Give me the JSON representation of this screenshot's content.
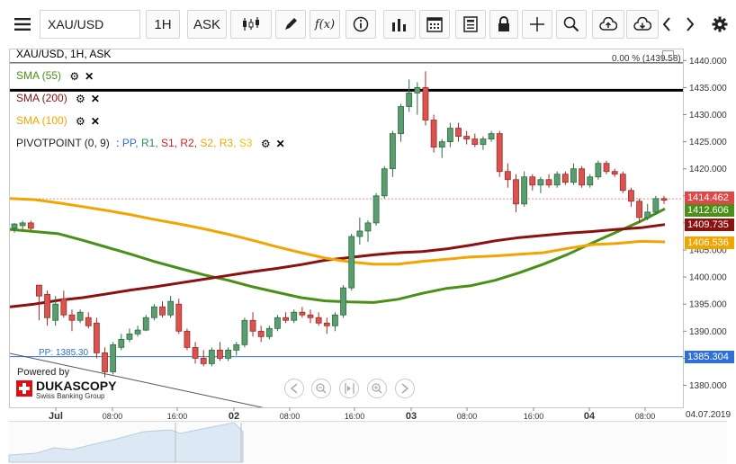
{
  "toolbar": {
    "symbol": "XAU/USD",
    "timeframe": "1H",
    "price_side": "ASK",
    "function_label": "f(x)"
  },
  "chart_header": {
    "title": "XAU/USD, 1H, ASK",
    "pct_readout": "0.00 % (1439.58)"
  },
  "legend": [
    {
      "label": "SMA (55)",
      "color": "#4a8f16"
    },
    {
      "label": "SMA (200)",
      "color": "#8b1010"
    },
    {
      "label": "SMA (100)",
      "color": "#f2a500"
    }
  ],
  "pivot": {
    "label": "PIVOTPOINT (0, 9)",
    "sep": ":",
    "items": [
      {
        "label": "PP,",
        "color": "#2f6fd6"
      },
      {
        "label": "R1,",
        "color": "#2e8b57"
      },
      {
        "label": "S1,",
        "color": "#cc2222"
      },
      {
        "label": "R2,",
        "color": "#cc2222"
      },
      {
        "label": "S2,",
        "color": "#f2a500"
      },
      {
        "label": "R3,",
        "color": "#f2a500"
      },
      {
        "label": "S3",
        "color": "#e8c800"
      }
    ],
    "pp_label": "PP: 1385.30"
  },
  "brand": {
    "powered": "Powered by",
    "name": "DUKASCOPY",
    "sub": "Swiss Banking Group"
  },
  "price_tags": {
    "last": "1414.462",
    "sma55": "1412.606",
    "sma200": "1409.735",
    "sma100": "1406.536",
    "pp": "1385.304"
  },
  "footer_date": "04.07.2019",
  "chart_data": {
    "type": "candlestick",
    "title": "XAU/USD, 1H, ASK",
    "ylim": [
      1377,
      1442
    ],
    "y_ticks": [
      1380,
      1385,
      1390,
      1395,
      1400,
      1405,
      1410,
      1415,
      1420,
      1425,
      1430,
      1435,
      1440
    ],
    "x_ticks": [
      "Jul",
      "08:00",
      "16:00",
      "02",
      "08:00",
      "16:00",
      "03",
      "08:00",
      "16:00",
      "04",
      "08:00"
    ],
    "horizontal_lines": [
      {
        "name": "line",
        "value": 1439.58,
        "color": "#333333"
      },
      {
        "name": "line",
        "value": 1434.5,
        "color": "#000000"
      },
      {
        "name": "PP",
        "value": 1385.304,
        "color": "#2f6fd6"
      }
    ],
    "candles": [
      {
        "o": 1409.0,
        "h": 1410.0,
        "l": 1408.2,
        "c": 1409.8
      },
      {
        "o": 1409.5,
        "h": 1410.4,
        "l": 1408.8,
        "c": 1410.0
      },
      {
        "o": 1410.0,
        "h": 1410.4,
        "l": 1408.6,
        "c": 1409.0
      },
      {
        "o": 1398.5,
        "h": 1398.5,
        "l": 1392.0,
        "c": 1396.5
      },
      {
        "o": 1396.8,
        "h": 1397.5,
        "l": 1391.0,
        "c": 1392.5
      },
      {
        "o": 1392.0,
        "h": 1396.5,
        "l": 1391.0,
        "c": 1395.0
      },
      {
        "o": 1396.0,
        "h": 1397.5,
        "l": 1392.5,
        "c": 1393.0
      },
      {
        "o": 1393.0,
        "h": 1394.0,
        "l": 1390.0,
        "c": 1392.0
      },
      {
        "o": 1392.0,
        "h": 1394.0,
        "l": 1391.5,
        "c": 1393.5
      },
      {
        "o": 1392.5,
        "h": 1393.5,
        "l": 1390.5,
        "c": 1391.0
      },
      {
        "o": 1391.5,
        "h": 1392.5,
        "l": 1385.0,
        "c": 1386.0
      },
      {
        "o": 1386.0,
        "h": 1387.0,
        "l": 1381.5,
        "c": 1382.5
      },
      {
        "o": 1382.5,
        "h": 1388.0,
        "l": 1382.0,
        "c": 1387.5
      },
      {
        "o": 1387.0,
        "h": 1389.5,
        "l": 1386.5,
        "c": 1388.5
      },
      {
        "o": 1388.5,
        "h": 1390.5,
        "l": 1388.0,
        "c": 1389.5
      },
      {
        "o": 1389.5,
        "h": 1391.0,
        "l": 1389.0,
        "c": 1390.2
      },
      {
        "o": 1390.2,
        "h": 1393.0,
        "l": 1390.0,
        "c": 1392.5
      },
      {
        "o": 1392.5,
        "h": 1395.0,
        "l": 1392.0,
        "c": 1394.5
      },
      {
        "o": 1394.5,
        "h": 1395.5,
        "l": 1392.5,
        "c": 1393.0
      },
      {
        "o": 1393.0,
        "h": 1396.5,
        "l": 1392.5,
        "c": 1395.5
      },
      {
        "o": 1395.0,
        "h": 1396.0,
        "l": 1389.5,
        "c": 1390.0
      },
      {
        "o": 1390.0,
        "h": 1390.5,
        "l": 1386.5,
        "c": 1387.0
      },
      {
        "o": 1387.0,
        "h": 1388.0,
        "l": 1384.0,
        "c": 1385.0
      },
      {
        "o": 1385.0,
        "h": 1386.5,
        "l": 1383.5,
        "c": 1384.0
      },
      {
        "o": 1384.0,
        "h": 1387.0,
        "l": 1383.5,
        "c": 1386.5
      },
      {
        "o": 1386.5,
        "h": 1388.0,
        "l": 1384.5,
        "c": 1385.0
      },
      {
        "o": 1385.0,
        "h": 1387.0,
        "l": 1384.5,
        "c": 1386.5
      },
      {
        "o": 1386.5,
        "h": 1388.0,
        "l": 1385.5,
        "c": 1387.5
      },
      {
        "o": 1387.5,
        "h": 1392.5,
        "l": 1387.0,
        "c": 1392.0
      },
      {
        "o": 1392.0,
        "h": 1393.5,
        "l": 1389.0,
        "c": 1390.0
      },
      {
        "o": 1390.0,
        "h": 1391.0,
        "l": 1388.0,
        "c": 1389.0
      },
      {
        "o": 1389.0,
        "h": 1391.0,
        "l": 1388.5,
        "c": 1390.5
      },
      {
        "o": 1390.5,
        "h": 1393.0,
        "l": 1390.0,
        "c": 1392.5
      },
      {
        "o": 1392.5,
        "h": 1393.5,
        "l": 1391.5,
        "c": 1392.0
      },
      {
        "o": 1392.0,
        "h": 1394.0,
        "l": 1391.5,
        "c": 1393.5
      },
      {
        "o": 1393.5,
        "h": 1394.5,
        "l": 1392.5,
        "c": 1393.0
      },
      {
        "o": 1393.0,
        "h": 1394.0,
        "l": 1391.5,
        "c": 1392.5
      },
      {
        "o": 1392.5,
        "h": 1393.5,
        "l": 1391.0,
        "c": 1391.5
      },
      {
        "o": 1391.5,
        "h": 1392.5,
        "l": 1389.5,
        "c": 1391.0
      },
      {
        "o": 1391.0,
        "h": 1393.5,
        "l": 1390.0,
        "c": 1393.0
      },
      {
        "o": 1393.0,
        "h": 1398.5,
        "l": 1392.5,
        "c": 1398.0
      },
      {
        "o": 1398.0,
        "h": 1408.0,
        "l": 1397.5,
        "c": 1407.5
      },
      {
        "o": 1407.5,
        "h": 1411.0,
        "l": 1406.0,
        "c": 1408.5
      },
      {
        "o": 1408.5,
        "h": 1410.5,
        "l": 1406.5,
        "c": 1410.0
      },
      {
        "o": 1410.0,
        "h": 1415.5,
        "l": 1409.5,
        "c": 1415.0
      },
      {
        "o": 1415.0,
        "h": 1420.5,
        "l": 1414.5,
        "c": 1420.0
      },
      {
        "o": 1420.0,
        "h": 1427.0,
        "l": 1418.5,
        "c": 1426.5
      },
      {
        "o": 1426.5,
        "h": 1432.0,
        "l": 1425.0,
        "c": 1431.5
      },
      {
        "o": 1431.5,
        "h": 1436.5,
        "l": 1430.5,
        "c": 1434.0
      },
      {
        "o": 1434.0,
        "h": 1436.0,
        "l": 1430.0,
        "c": 1435.0
      },
      {
        "o": 1435.0,
        "h": 1438.0,
        "l": 1428.0,
        "c": 1429.0
      },
      {
        "o": 1429.0,
        "h": 1430.0,
        "l": 1423.0,
        "c": 1424.0
      },
      {
        "o": 1424.0,
        "h": 1425.5,
        "l": 1422.0,
        "c": 1425.0
      },
      {
        "o": 1425.0,
        "h": 1428.5,
        "l": 1424.0,
        "c": 1427.5
      },
      {
        "o": 1427.5,
        "h": 1428.5,
        "l": 1425.0,
        "c": 1426.0
      },
      {
        "o": 1426.0,
        "h": 1427.0,
        "l": 1424.5,
        "c": 1425.5
      },
      {
        "o": 1425.5,
        "h": 1426.5,
        "l": 1424.0,
        "c": 1424.5
      },
      {
        "o": 1424.5,
        "h": 1426.0,
        "l": 1423.5,
        "c": 1425.5
      },
      {
        "o": 1425.5,
        "h": 1427.0,
        "l": 1425.0,
        "c": 1426.5
      },
      {
        "o": 1426.5,
        "h": 1427.0,
        "l": 1418.5,
        "c": 1419.5
      },
      {
        "o": 1419.5,
        "h": 1421.0,
        "l": 1416.5,
        "c": 1418.0
      },
      {
        "o": 1418.0,
        "h": 1419.0,
        "l": 1412.0,
        "c": 1413.5
      },
      {
        "o": 1413.5,
        "h": 1419.5,
        "l": 1413.0,
        "c": 1418.5
      },
      {
        "o": 1418.5,
        "h": 1419.0,
        "l": 1416.0,
        "c": 1417.0
      },
      {
        "o": 1417.0,
        "h": 1418.5,
        "l": 1415.5,
        "c": 1418.0
      },
      {
        "o": 1418.0,
        "h": 1419.0,
        "l": 1416.5,
        "c": 1417.0
      },
      {
        "o": 1417.0,
        "h": 1419.5,
        "l": 1416.5,
        "c": 1419.0
      },
      {
        "o": 1419.0,
        "h": 1419.5,
        "l": 1417.0,
        "c": 1417.5
      },
      {
        "o": 1417.5,
        "h": 1421.0,
        "l": 1417.0,
        "c": 1420.0
      },
      {
        "o": 1420.0,
        "h": 1420.5,
        "l": 1416.5,
        "c": 1417.0
      },
      {
        "o": 1417.0,
        "h": 1419.0,
        "l": 1416.5,
        "c": 1418.5
      },
      {
        "o": 1418.5,
        "h": 1421.5,
        "l": 1418.0,
        "c": 1421.0
      },
      {
        "o": 1421.0,
        "h": 1421.5,
        "l": 1419.0,
        "c": 1419.5
      },
      {
        "o": 1419.5,
        "h": 1420.0,
        "l": 1418.5,
        "c": 1419.0
      },
      {
        "o": 1419.0,
        "h": 1419.5,
        "l": 1415.5,
        "c": 1416.0
      },
      {
        "o": 1416.0,
        "h": 1416.5,
        "l": 1413.0,
        "c": 1414.0
      },
      {
        "o": 1414.0,
        "h": 1414.5,
        "l": 1410.0,
        "c": 1411.0
      },
      {
        "o": 1411.0,
        "h": 1413.5,
        "l": 1410.5,
        "c": 1412.0
      },
      {
        "o": 1412.0,
        "h": 1415.0,
        "l": 1411.5,
        "c": 1414.5
      },
      {
        "o": 1414.5,
        "h": 1415.0,
        "l": 1413.5,
        "c": 1414.2
      }
    ],
    "series": [
      {
        "name": "SMA (55)",
        "color": "#4a8f16",
        "values": [
          1408.8,
          1408.4,
          1408.0,
          1406.8,
          1405.5,
          1404.2,
          1402.8,
          1401.6,
          1400.4,
          1399.4,
          1398.2,
          1397.2,
          1396.2,
          1395.6,
          1395.4,
          1395.3,
          1395.9,
          1397.0,
          1397.9,
          1398.4,
          1399.4,
          1400.8,
          1402.4,
          1404.2,
          1406.3,
          1408.3,
          1410.3,
          1412.6
        ]
      },
      {
        "name": "SMA (200)",
        "color": "#8b1010",
        "values": [
          1394.5,
          1395.0,
          1395.7,
          1396.2,
          1396.9,
          1397.6,
          1398.2,
          1398.9,
          1399.6,
          1400.3,
          1401.0,
          1401.6,
          1402.3,
          1403.1,
          1403.6,
          1404.1,
          1404.5,
          1404.7,
          1405.2,
          1405.9,
          1406.7,
          1407.3,
          1407.7,
          1408.1,
          1408.4,
          1408.8,
          1409.1,
          1409.7
        ]
      },
      {
        "name": "SMA (100)",
        "color": "#f2a500",
        "values": [
          1414.5,
          1414.3,
          1413.7,
          1413.0,
          1412.3,
          1411.5,
          1410.6,
          1409.8,
          1408.9,
          1407.9,
          1406.8,
          1405.6,
          1404.5,
          1403.5,
          1402.8,
          1402.4,
          1402.4,
          1402.9,
          1403.3,
          1403.7,
          1403.9,
          1404.2,
          1404.5,
          1405.3,
          1406.0,
          1406.2,
          1406.6,
          1406.5
        ]
      }
    ]
  }
}
